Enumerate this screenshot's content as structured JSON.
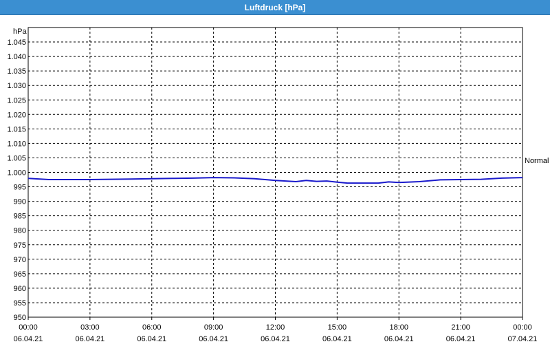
{
  "window": {
    "title": "Luftdruck [hPa]"
  },
  "colors": {
    "titlebar": "#3b8fd1",
    "line": "#1a1acc",
    "grid": "#000000"
  },
  "chart_data": {
    "type": "line",
    "title": "Luftdruck [hPa]",
    "ylabel": "hPa",
    "ylim": [
      950,
      1050
    ],
    "yticks": [
      "950",
      "955",
      "960",
      "965",
      "970",
      "975",
      "980",
      "985",
      "990",
      "995",
      "1.000",
      "1.005",
      "1.010",
      "1.015",
      "1.020",
      "1.025",
      "1.030",
      "1.035",
      "1.040",
      "1.045"
    ],
    "yticks_values": [
      950,
      955,
      960,
      965,
      970,
      975,
      980,
      985,
      990,
      995,
      1000,
      1005,
      1010,
      1015,
      1020,
      1025,
      1030,
      1035,
      1040,
      1045
    ],
    "xlim": [
      "2021-04-06T00:00",
      "2021-04-07T00:00"
    ],
    "xticks": [
      {
        "time": "00:00",
        "date": "06.04.21"
      },
      {
        "time": "03:00",
        "date": "06.04.21"
      },
      {
        "time": "06:00",
        "date": "06.04.21"
      },
      {
        "time": "09:00",
        "date": "06.04.21"
      },
      {
        "time": "12:00",
        "date": "06.04.21"
      },
      {
        "time": "15:00",
        "date": "06.04.21"
      },
      {
        "time": "18:00",
        "date": "06.04.21"
      },
      {
        "time": "21:00",
        "date": "06.04.21"
      },
      {
        "time": "00:00",
        "date": "07.04.21"
      }
    ],
    "grid": true,
    "annotation": "Normal",
    "series": [
      {
        "x": [
          "00:00",
          "01:00",
          "02:00",
          "03:00",
          "04:00",
          "05:00",
          "06:00",
          "07:00",
          "08:00",
          "09:00",
          "10:00",
          "11:00",
          "12:00",
          "13:00",
          "13:30",
          "14:00",
          "14:30",
          "15:00",
          "15:30",
          "16:00",
          "17:00",
          "17:30",
          "18:00",
          "19:00",
          "20:00",
          "21:00",
          "22:00",
          "23:00",
          "24:00"
        ],
        "values": [
          997.9,
          997.5,
          997.5,
          997.5,
          997.6,
          997.7,
          997.8,
          997.9,
          998.0,
          998.2,
          998.1,
          997.8,
          997.2,
          996.8,
          997.2,
          996.9,
          997.0,
          996.6,
          996.3,
          996.3,
          996.3,
          996.7,
          996.5,
          996.8,
          997.4,
          997.5,
          997.6,
          998.0,
          998.2
        ]
      }
    ]
  }
}
